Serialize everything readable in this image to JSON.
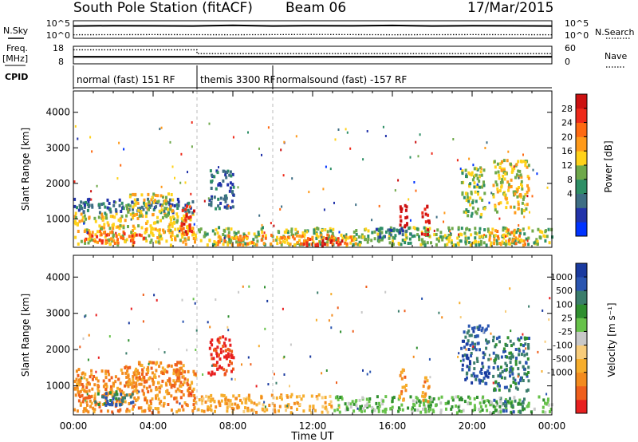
{
  "header": {
    "station_title": "South Pole Station (fitACF)",
    "beam": "Beam 06",
    "date": "17/Mar/2015"
  },
  "left_labels": {
    "nsky": "N.Sky",
    "freq_line1": "Freq.",
    "freq_line2": "[MHz]",
    "cpid": "CPID"
  },
  "right_labels": {
    "nsearch": "N.Search",
    "nave": "Nave"
  },
  "chart_data": [
    {
      "type": "line",
      "name": "noise",
      "left_ticks": [
        "10^5",
        "10^0"
      ],
      "right_ticks": [
        "10^5",
        "10^0"
      ],
      "series": [
        {
          "label": "N.Sky",
          "style": "solid",
          "x": [
            0,
            2,
            4,
            6,
            8,
            10,
            12,
            14,
            16,
            18,
            20,
            22,
            24
          ],
          "y_level": [
            0.7,
            0.72,
            0.71,
            0.7,
            0.74,
            0.7,
            0.72,
            0.71,
            0.73,
            0.7,
            0.72,
            0.71,
            0.7
          ]
        },
        {
          "label": "N.Search",
          "style": "dotted",
          "x": [
            0,
            4,
            8,
            12,
            16,
            20,
            24
          ],
          "y_level": [
            0.2,
            0.21,
            0.2,
            0.22,
            0.2,
            0.21,
            0.2
          ]
        }
      ]
    },
    {
      "type": "line",
      "name": "frequency",
      "left_ticks": [
        "18",
        "8"
      ],
      "right_ticks": [
        "60",
        "0"
      ],
      "series": [
        {
          "label": "Freq.",
          "style": "solid",
          "x": [
            0,
            6.2,
            6.2,
            24
          ],
          "y": [
            12,
            12,
            12,
            12
          ]
        },
        {
          "label": "Nave",
          "style": "dotted",
          "x": [
            0,
            6.2,
            6.2,
            24
          ],
          "y": [
            48,
            48,
            35,
            35
          ]
        }
      ]
    },
    {
      "type": "table",
      "name": "cpid",
      "segments": [
        {
          "start": 0,
          "end": 6.2,
          "label": "normal (fast) 151 RF"
        },
        {
          "start": 6.2,
          "end": 10.0,
          "label": "themis 3300 RF"
        },
        {
          "start": 10.0,
          "end": 24,
          "label": "normalsound (fast) -157 RF"
        }
      ]
    },
    {
      "type": "heatmap",
      "name": "power",
      "ylabel": "Slant Range [km]",
      "yticks": [
        1000,
        2000,
        3000,
        4000
      ],
      "ylim": [
        200,
        4600
      ],
      "xlim": [
        0,
        24
      ],
      "colorbar_label": "Power [dB]",
      "colorbar_ticks": [
        "28",
        "24",
        "20",
        "16",
        "12",
        "8",
        "4"
      ],
      "colors": [
        "#0033ff",
        "#2233aa",
        "#3e6e84",
        "#2e8f66",
        "#6fa94b",
        "#ffd21a",
        "#ff9a1a",
        "#ff6a12",
        "#ee2a1a",
        "#cc1111"
      ],
      "blobs": [
        {
          "t0": 0.0,
          "t1": 6.1,
          "r0": 300,
          "r1": 1200,
          "level": 5
        },
        {
          "t0": 0.0,
          "t1": 6.1,
          "r0": 1200,
          "r1": 1600,
          "level": 2
        },
        {
          "t0": 2.6,
          "t1": 5.0,
          "r0": 1100,
          "r1": 1750,
          "level": 5
        },
        {
          "t0": 5.3,
          "t1": 6.0,
          "r0": 600,
          "r1": 1400,
          "level": 8
        },
        {
          "t0": 0.5,
          "t1": 3.5,
          "r0": 350,
          "r1": 700,
          "level": 7
        },
        {
          "t0": 6.7,
          "t1": 8.0,
          "r0": 1300,
          "r1": 2400,
          "level": 2
        },
        {
          "t0": 6.2,
          "t1": 24.0,
          "r0": 300,
          "r1": 800,
          "level": 4
        },
        {
          "t0": 7.0,
          "t1": 14.5,
          "r0": 300,
          "r1": 600,
          "level": 6
        },
        {
          "t0": 11.5,
          "t1": 13.5,
          "r0": 250,
          "r1": 500,
          "level": 8
        },
        {
          "t0": 16.3,
          "t1": 16.7,
          "r0": 600,
          "r1": 1500,
          "level": 9
        },
        {
          "t0": 17.4,
          "t1": 17.8,
          "r0": 600,
          "r1": 1400,
          "level": 9
        },
        {
          "t0": 15.0,
          "t1": 17.0,
          "r0": 500,
          "r1": 800,
          "level": 2
        },
        {
          "t0": 19.4,
          "t1": 20.6,
          "r0": 1100,
          "r1": 2500,
          "level": 4
        },
        {
          "t0": 21.0,
          "t1": 22.8,
          "r0": 1200,
          "r1": 2700,
          "level": 5
        },
        {
          "t0": 20.8,
          "t1": 22.6,
          "r0": 300,
          "r1": 750,
          "level": 6
        }
      ]
    },
    {
      "type": "heatmap",
      "name": "velocity",
      "ylabel": "Slant Range [km]",
      "yticks": [
        1000,
        2000,
        3000,
        4000
      ],
      "ylim": [
        200,
        4600
      ],
      "xlim": [
        0,
        24
      ],
      "colorbar_label": "Velocity [m s⁻¹]",
      "colorbar_ticks": [
        "1000",
        "500",
        "100",
        "25",
        "-25",
        "-100",
        "-500",
        "-1000"
      ],
      "colors": [
        "#e82020",
        "#ef5f1c",
        "#f38b1e",
        "#f6ad2c",
        "#f8cc7a",
        "#c8c8c8",
        "#67c24a",
        "#2f8f2f",
        "#3b7d6b",
        "#2a55b0",
        "#1a3a9f"
      ],
      "blobs": [
        {
          "t0": 0.0,
          "t1": 6.1,
          "r0": 300,
          "r1": 1500,
          "level": 2
        },
        {
          "t0": 1.0,
          "t1": 3.0,
          "r0": 500,
          "r1": 900,
          "level": 8
        },
        {
          "t0": 2.5,
          "t1": 5.5,
          "r0": 1000,
          "r1": 1700,
          "level": 2
        },
        {
          "t0": 6.7,
          "t1": 8.0,
          "r0": 1300,
          "r1": 2400,
          "level": 0
        },
        {
          "t0": 6.2,
          "t1": 13.0,
          "r0": 300,
          "r1": 800,
          "level": 3
        },
        {
          "t0": 13.0,
          "t1": 24.0,
          "r0": 300,
          "r1": 750,
          "level": 6
        },
        {
          "t0": 16.3,
          "t1": 16.7,
          "r0": 600,
          "r1": 1500,
          "level": 2
        },
        {
          "t0": 17.4,
          "t1": 17.8,
          "r0": 600,
          "r1": 1400,
          "level": 2
        },
        {
          "t0": 19.4,
          "t1": 20.8,
          "r0": 1100,
          "r1": 2700,
          "level": 9
        },
        {
          "t0": 21.0,
          "t1": 22.8,
          "r0": 900,
          "r1": 2400,
          "level": 8
        },
        {
          "t0": 21.0,
          "t1": 22.6,
          "r0": 300,
          "r1": 700,
          "level": 8
        }
      ]
    }
  ],
  "xaxis": {
    "ticks": [
      "00:00",
      "04:00",
      "08:00",
      "12:00",
      "16:00",
      "20:00",
      "00:00"
    ],
    "label": "Time UT"
  }
}
